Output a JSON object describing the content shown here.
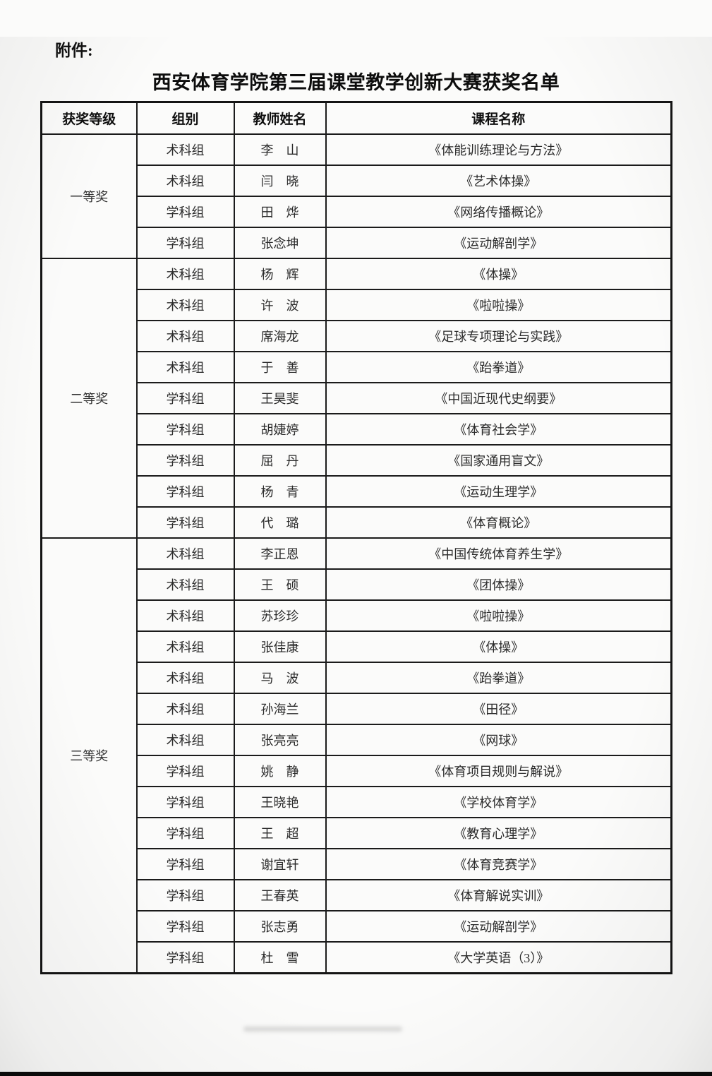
{
  "page": {
    "attachment_label": "附件:",
    "title": "西安体育学院第三届课堂教学创新大赛获奖名单"
  },
  "table": {
    "headers": [
      "获奖等级",
      "组别",
      "教师姓名",
      "课程名称"
    ],
    "groups": [
      {
        "award": "一等奖",
        "rows": [
          {
            "group": "术科组",
            "teacher": "李　山",
            "course": "《体能训练理论与方法》"
          },
          {
            "group": "术科组",
            "teacher": "闫　晓",
            "course": "《艺术体操》"
          },
          {
            "group": "学科组",
            "teacher": "田　烨",
            "course": "《网络传播概论》"
          },
          {
            "group": "学科组",
            "teacher": "张念坤",
            "course": "《运动解剖学》"
          }
        ]
      },
      {
        "award": "二等奖",
        "rows": [
          {
            "group": "术科组",
            "teacher": "杨　辉",
            "course": "《体操》"
          },
          {
            "group": "术科组",
            "teacher": "许　波",
            "course": "《啦啦操》"
          },
          {
            "group": "术科组",
            "teacher": "席海龙",
            "course": "《足球专项理论与实践》"
          },
          {
            "group": "术科组",
            "teacher": "于　善",
            "course": "《跆拳道》"
          },
          {
            "group": "学科组",
            "teacher": "王昊斐",
            "course": "《中国近现代史纲要》"
          },
          {
            "group": "学科组",
            "teacher": "胡婕婷",
            "course": "《体育社会学》"
          },
          {
            "group": "学科组",
            "teacher": "屈　丹",
            "course": "《国家通用盲文》"
          },
          {
            "group": "学科组",
            "teacher": "杨　青",
            "course": "《运动生理学》"
          },
          {
            "group": "学科组",
            "teacher": "代　璐",
            "course": "《体育概论》"
          }
        ]
      },
      {
        "award": "三等奖",
        "rows": [
          {
            "group": "术科组",
            "teacher": "李正恩",
            "course": "《中国传统体育养生学》"
          },
          {
            "group": "术科组",
            "teacher": "王　硕",
            "course": "《团体操》"
          },
          {
            "group": "术科组",
            "teacher": "苏珍珍",
            "course": "《啦啦操》"
          },
          {
            "group": "术科组",
            "teacher": "张佳康",
            "course": "《体操》"
          },
          {
            "group": "术科组",
            "teacher": "马　波",
            "course": "《跆拳道》"
          },
          {
            "group": "术科组",
            "teacher": "孙海兰",
            "course": "《田径》"
          },
          {
            "group": "术科组",
            "teacher": "张亮亮",
            "course": "《网球》"
          },
          {
            "group": "学科组",
            "teacher": "姚　静",
            "course": "《体育项目规则与解说》"
          },
          {
            "group": "学科组",
            "teacher": "王晓艳",
            "course": "《学校体育学》"
          },
          {
            "group": "学科组",
            "teacher": "王　超",
            "course": "《教育心理学》"
          },
          {
            "group": "学科组",
            "teacher": "谢宜轩",
            "course": "《体育竞赛学》"
          },
          {
            "group": "学科组",
            "teacher": "王春英",
            "course": "《体育解说实训》"
          },
          {
            "group": "学科组",
            "teacher": "张志勇",
            "course": "《运动解剖学》"
          },
          {
            "group": "学科组",
            "teacher": "杜　雪",
            "course": "《大学英语（3）》"
          }
        ]
      }
    ]
  },
  "colors": {
    "page_background": "#fbfbfa",
    "table_border": "#1b1b1b",
    "text": "#2b2b2b",
    "title_text": "#0d0d0d"
  }
}
